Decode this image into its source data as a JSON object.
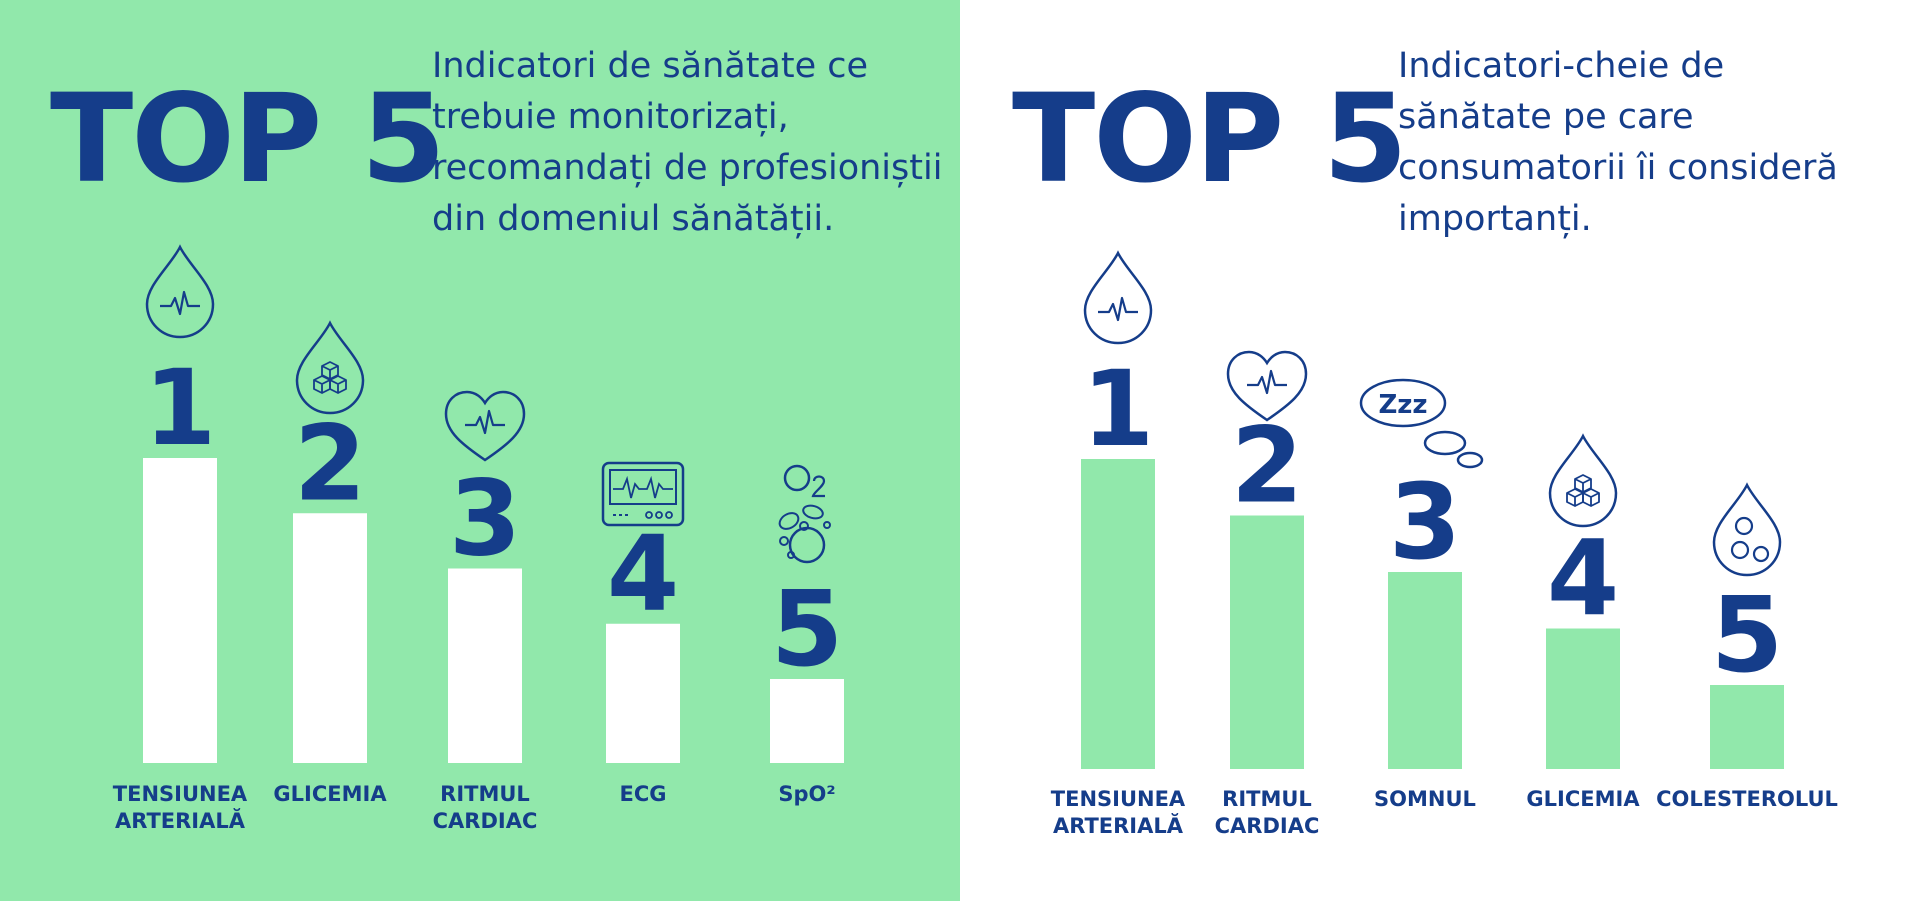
{
  "colors": {
    "green": "#91E8AB",
    "white": "#FFFFFF",
    "navy": "#153D8A"
  },
  "left": {
    "heading": "TOP 5",
    "subtitle_lines": [
      "Indicatori de sănătate ce",
      "trebuie monitorizați,",
      "recomandați de profesioniștii",
      "din domeniul sănătății."
    ]
  },
  "right": {
    "heading": "TOP 5",
    "subtitle_lines": [
      "Indicatori-cheie de",
      "sănătate pe care",
      "consumatorii îi consideră",
      "importanți."
    ]
  },
  "chart_data": [
    {
      "type": "bar",
      "title": "Indicatori de sănătate ce trebuie monitorizați, recomandați de profesioniștii din domeniul sănătății.",
      "categories": [
        [
          "TENSIUNEA",
          "ARTERIALĂ"
        ],
        [
          "GLICEMIA"
        ],
        [
          "RITMUL",
          "CARDIAC"
        ],
        [
          "ECG"
        ],
        [
          "SpO²"
        ]
      ],
      "ranks": [
        "1",
        "2",
        "3",
        "4",
        "5"
      ],
      "icons": [
        "blood-drop-pulse-icon",
        "drop-sugar-cubes-icon",
        "heart-pulse-icon",
        "ecg-monitor-icon",
        "oxygen-bubbles-icon"
      ],
      "values": [
        5,
        4,
        3,
        2,
        1
      ],
      "bar_color": "#FFFFFF"
    },
    {
      "type": "bar",
      "title": "Indicatori-cheie de sănătate pe care consumatorii îi consideră importanți.",
      "categories": [
        [
          "TENSIUNEA",
          "ARTERIALĂ"
        ],
        [
          "RITMUL",
          "CARDIAC"
        ],
        [
          "SOMNUL"
        ],
        [
          "GLICEMIA"
        ],
        [
          "COLESTEROLUL"
        ]
      ],
      "ranks": [
        "1",
        "2",
        "3",
        "4",
        "5"
      ],
      "icons": [
        "blood-drop-pulse-icon",
        "heart-pulse-icon",
        "sleep-thought-bubble-icon",
        "drop-sugar-cubes-icon",
        "drop-cholesterol-icon"
      ],
      "values": [
        5,
        4,
        3,
        2,
        1
      ],
      "sleep_icon_text": "Zzz",
      "bar_color": "#91E8AB"
    }
  ]
}
